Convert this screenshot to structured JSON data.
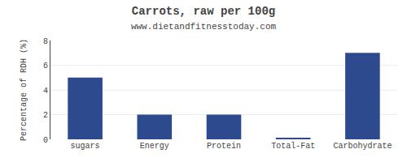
{
  "chart_data": {
    "type": "bar",
    "title": "Carrots, raw per 100g",
    "subtitle": "www.dietandfitnesstoday.com",
    "categories": [
      "sugars",
      "Energy",
      "Protein",
      "Total-Fat",
      "Carbohydrate"
    ],
    "values": [
      5,
      2,
      2,
      0.1,
      7
    ],
    "color": "#2e4a8e",
    "ylabel": "Percentage of RDH (%)",
    "ylim": [
      0,
      8
    ],
    "yticks": [
      0,
      2,
      4,
      6,
      8
    ],
    "grid": true
  }
}
